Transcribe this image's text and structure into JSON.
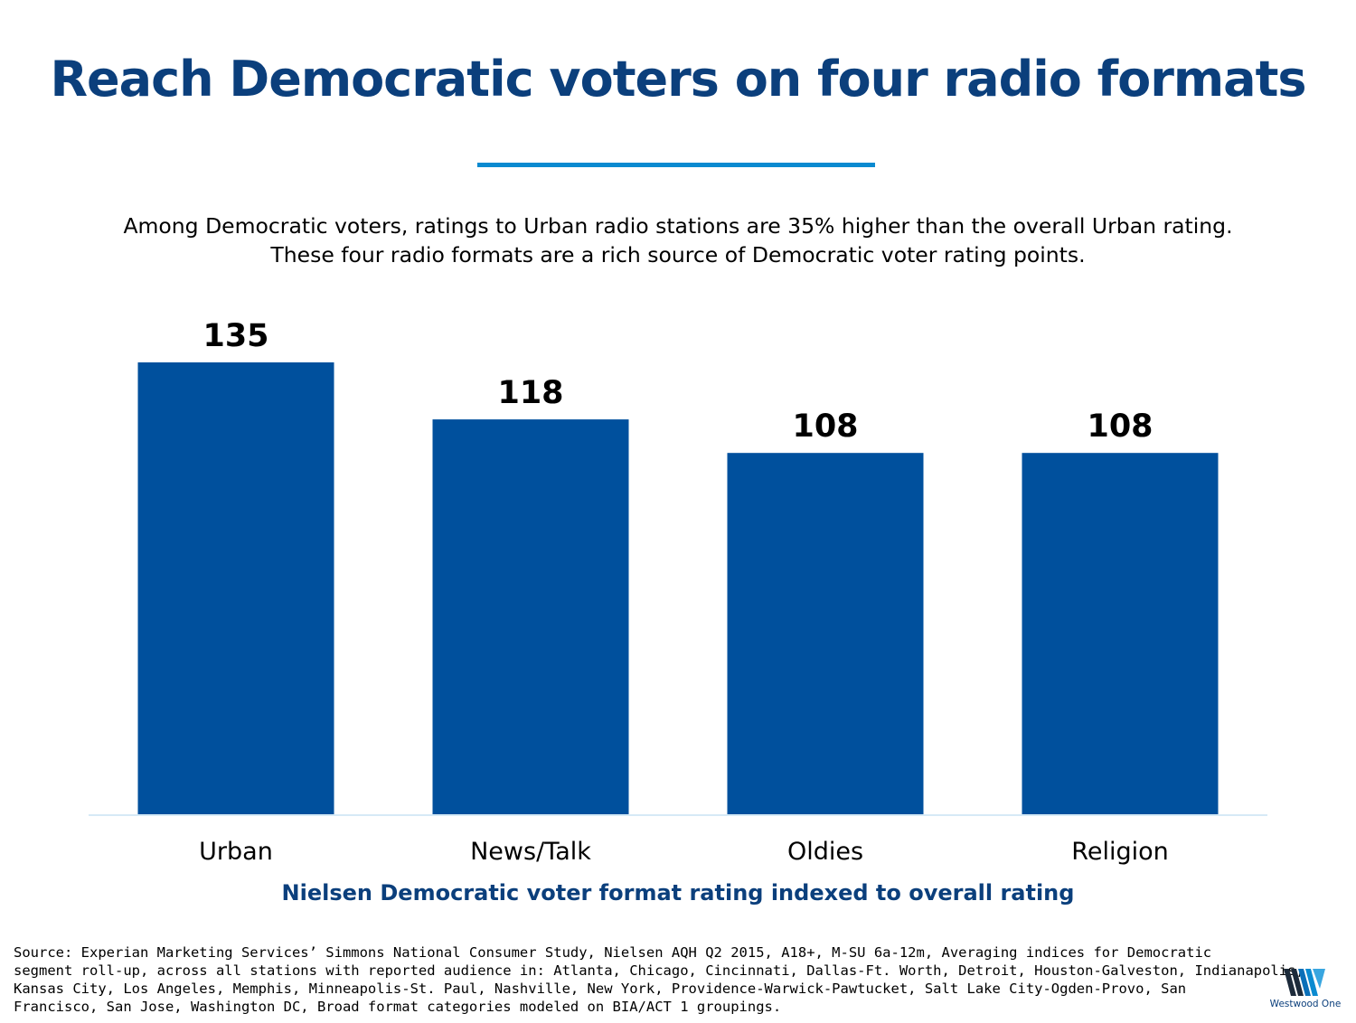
{
  "title": "Reach Democratic voters on four radio formats",
  "subtitle": {
    "line1": "Among Democratic voters, ratings to Urban radio stations are 35% higher than the overall Urban rating.",
    "line2": "These four radio formats are a rich source of Democratic voter rating points."
  },
  "colors": {
    "title": "#0b3f7c",
    "rule": "#0a8ad0",
    "bar": "#00509d",
    "axis_line": "#d6eaf6"
  },
  "chart_data": {
    "type": "bar",
    "categories": [
      "Urban",
      "News/Talk",
      "Oldies",
      "Religion"
    ],
    "values": [
      135,
      118,
      108,
      108
    ],
    "data_labels": [
      "135",
      "118",
      "108",
      "108"
    ],
    "xlabel": "Nielsen Democratic voter format rating indexed to overall rating",
    "ylabel": "",
    "ylim": [
      0,
      135
    ],
    "grid": false,
    "legend": "none"
  },
  "source": {
    "lines": [
      "Source: Experian Marketing Services’ Simmons National Consumer Study, Nielsen AQH Q2 2015, A18+, M-SU 6a-12m, Averaging indices for Democratic",
      "segment roll-up, across all stations with reported audience in: Atlanta, Chicago, Cincinnati, Dallas-Ft. Worth, Detroit, Houston-Galveston, Indianapolis,",
      "Kansas City, Los Angeles, Memphis, Minneapolis-St. Paul, Nashville, New York, Providence-Warwick-Pawtucket, Salt Lake City-Ogden-Provo, San",
      "Francisco, San Jose, Washington DC, Broad format categories modeled on BIA/ACT 1 groupings."
    ]
  },
  "logo": {
    "text": "Westwood One",
    "icon": "westwood-one-logo-icon"
  }
}
